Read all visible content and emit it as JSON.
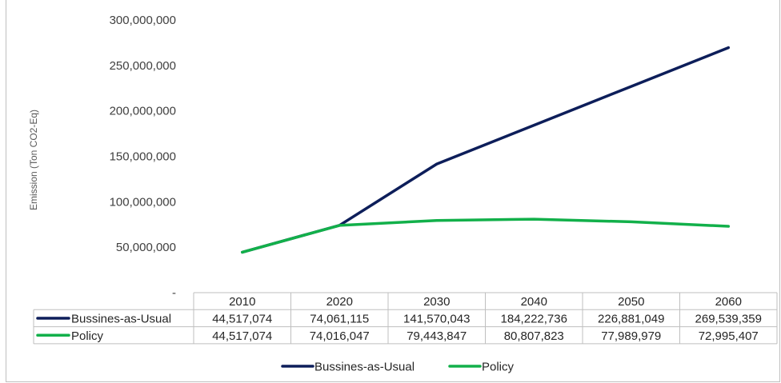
{
  "chart_data": {
    "type": "line",
    "ylabel": "Emission (Ton CO2-Eq)",
    "ylim": [
      0,
      300000000
    ],
    "y_ticks": [
      "-",
      "50,000,000",
      "100,000,000",
      "150,000,000",
      "200,000,000",
      "250,000,000",
      "300,000,000"
    ],
    "categories": [
      "2010",
      "2020",
      "2030",
      "2040",
      "2050",
      "2060"
    ],
    "series": [
      {
        "name": "Bussines-as-Usual",
        "color": "#0d1e5a",
        "values": [
          44517074,
          74061115,
          141570043,
          184222736,
          226881049,
          269539359
        ],
        "labels": [
          "44,517,074",
          "74,061,115",
          "141,570,043",
          "184,222,736",
          "226,881,049",
          "269,539,359"
        ]
      },
      {
        "name": "Policy",
        "color": "#12b04a",
        "values": [
          44517074,
          74016047,
          79443847,
          80807823,
          77989979,
          72995407
        ],
        "labels": [
          "44,517,074",
          "74,016,047",
          "79,443,847",
          "80,807,823",
          "77,989,979",
          "72,995,407"
        ]
      }
    ],
    "gridlines": false,
    "legend_position": "bottom",
    "data_table": true
  }
}
